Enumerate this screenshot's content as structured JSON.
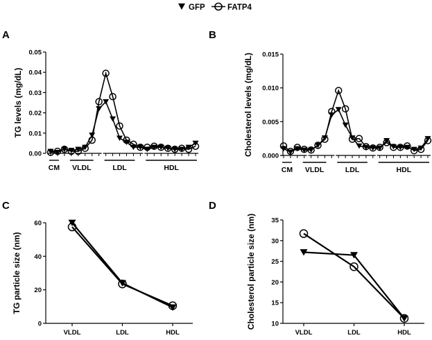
{
  "legend": [
    {
      "name": "GFP",
      "marker": "triangle-down"
    },
    {
      "name": "FATP4",
      "marker": "open-circle"
    }
  ],
  "panels": [
    {
      "letter": "A"
    },
    {
      "letter": "B"
    },
    {
      "letter": "C"
    },
    {
      "letter": "D"
    }
  ],
  "chart_data": [
    {
      "type": "line",
      "ylabel": "TG levels (mg/dL)",
      "xlabel": "",
      "ylim": [
        0,
        0.05
      ],
      "yticks": [
        "0.00",
        "0.01",
        "0.02",
        "0.03",
        "0.04",
        "0.05"
      ],
      "x": [
        1,
        2,
        3,
        4,
        5,
        6,
        7,
        8,
        9,
        10,
        11,
        12,
        13,
        14,
        15,
        16,
        17,
        18,
        19,
        20,
        21,
        22
      ],
      "groups": [
        "CM",
        "VLDL",
        "LDL",
        "HDL"
      ],
      "series": [
        {
          "name": "GFP",
          "values": [
            0.001,
            0.0005,
            0.002,
            0.0015,
            0.002,
            0.003,
            0.009,
            0.022,
            0.0255,
            0.017,
            0.0075,
            0.0055,
            0.003,
            0.003,
            0.002,
            0.003,
            0.003,
            0.0025,
            0.002,
            0.002,
            0.003,
            0.005
          ]
        },
        {
          "name": "FATP4",
          "values": [
            0.0005,
            0.001,
            0.002,
            0.001,
            0.001,
            0.0025,
            0.0065,
            0.0255,
            0.0395,
            0.028,
            0.0135,
            0.0065,
            0.0045,
            0.003,
            0.003,
            0.0035,
            0.003,
            0.0025,
            0.002,
            0.0025,
            0.002,
            0.0035
          ]
        }
      ]
    },
    {
      "type": "line",
      "ylabel": "Cholesterol levels (mg/dL)",
      "xlabel": "",
      "ylim": [
        0,
        0.015
      ],
      "yticks": [
        "0.000",
        "0.005",
        "0.010",
        "0.015"
      ],
      "x": [
        1,
        2,
        3,
        4,
        5,
        6,
        7,
        8,
        9,
        10,
        11,
        12,
        13,
        14,
        15,
        16,
        17,
        18,
        19,
        20,
        21,
        22
      ],
      "groups": [
        "CM",
        "VLDL",
        "LDL",
        "HDL"
      ],
      "series": [
        {
          "name": "GFP",
          "values": [
            0.001,
            0.0005,
            0.001,
            0.0008,
            0.0008,
            0.0015,
            0.0026,
            0.006,
            0.0068,
            0.0045,
            0.0026,
            0.0014,
            0.0012,
            0.0011,
            0.0011,
            0.0022,
            0.0013,
            0.0012,
            0.0012,
            0.0009,
            0.0011,
            0.0025
          ]
        },
        {
          "name": "FATP4",
          "values": [
            0.0014,
            0.0006,
            0.0012,
            0.0009,
            0.0008,
            0.0015,
            0.0024,
            0.0065,
            0.0096,
            0.0069,
            0.0024,
            0.0025,
            0.0013,
            0.0011,
            0.0012,
            0.0019,
            0.0012,
            0.0012,
            0.0014,
            0.0007,
            0.0009,
            0.0022
          ]
        }
      ]
    },
    {
      "type": "line",
      "ylabel": "TG particle size (nm)",
      "xlabel": "",
      "ylim": [
        0,
        60
      ],
      "yticks": [
        "0",
        "20",
        "40",
        "60"
      ],
      "categories": [
        "VLDL",
        "LDL",
        "HDL"
      ],
      "series": [
        {
          "name": "GFP",
          "values": [
            60,
            24,
            9.5
          ]
        },
        {
          "name": "FATP4",
          "values": [
            57.5,
            23.5,
            10.5
          ]
        }
      ]
    },
    {
      "type": "line",
      "ylabel": "Cholesterol particle size (nm)",
      "xlabel": "",
      "ylim": [
        10,
        35
      ],
      "yticks": [
        "10",
        "15",
        "20",
        "25",
        "30",
        "35"
      ],
      "categories": [
        "VLDL",
        "LDL",
        "HDL"
      ],
      "series": [
        {
          "name": "GFP",
          "values": [
            27.2,
            26.5,
            11.2
          ]
        },
        {
          "name": "FATP4",
          "values": [
            31.7,
            23.7,
            11.2
          ]
        }
      ]
    }
  ]
}
